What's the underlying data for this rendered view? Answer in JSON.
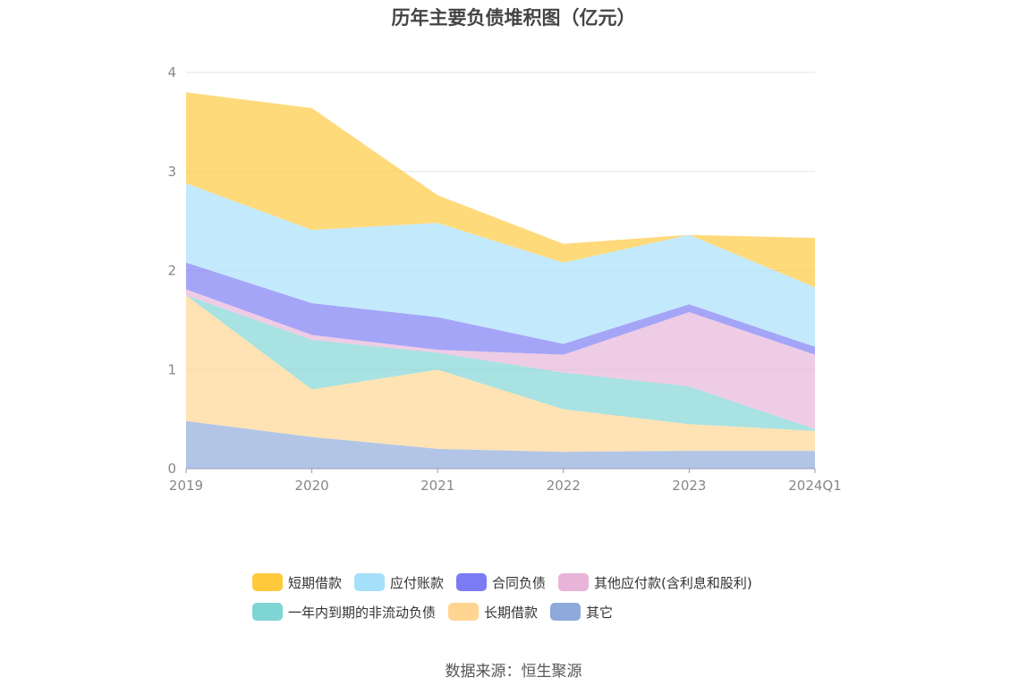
{
  "chart_data": {
    "type": "area",
    "title": "历年主要负债堆积图（亿元）",
    "categories": [
      "2019",
      "2020",
      "2021",
      "2022",
      "2023",
      "2024Q1"
    ],
    "y_ticks": [
      "0",
      "1",
      "2",
      "3",
      "4"
    ],
    "ylim": [
      0,
      4
    ],
    "stacked": true,
    "grid": true,
    "legend_position": "bottom",
    "series": [
      {
        "name": "其它",
        "color": "#8eaadb",
        "values": [
          0.48,
          0.32,
          0.2,
          0.17,
          0.18,
          0.18
        ]
      },
      {
        "name": "长期借款",
        "color": "#ffd591",
        "values": [
          1.27,
          0.48,
          0.8,
          0.43,
          0.27,
          0.2
        ]
      },
      {
        "name": "一年内到期的非流动负债",
        "color": "#7fd4d4",
        "values": [
          0.0,
          0.5,
          0.17,
          0.37,
          0.38,
          0.02
        ]
      },
      {
        "name": "其他应付款(含利息和股利)",
        "color": "#e8b4d8",
        "values": [
          0.06,
          0.05,
          0.03,
          0.18,
          0.75,
          0.75
        ]
      },
      {
        "name": "合同负债",
        "color": "#7b7bf5",
        "values": [
          0.27,
          0.32,
          0.33,
          0.11,
          0.08,
          0.08
        ]
      },
      {
        "name": "应付账款",
        "color": "#a6e0fa",
        "values": [
          0.8,
          0.74,
          0.95,
          0.82,
          0.7,
          0.6
        ]
      },
      {
        "name": "短期借款",
        "color": "#ffc93c",
        "values": [
          0.92,
          1.23,
          0.28,
          0.19,
          0.0,
          0.5
        ]
      }
    ]
  },
  "legend": {
    "row1": [
      "短期借款",
      "应付账款",
      "合同负债",
      "其他应付款(含利息和股利)"
    ],
    "row2": [
      "一年内到期的非流动负债",
      "长期借款",
      "其它"
    ]
  },
  "source": "数据来源：恒生聚源"
}
